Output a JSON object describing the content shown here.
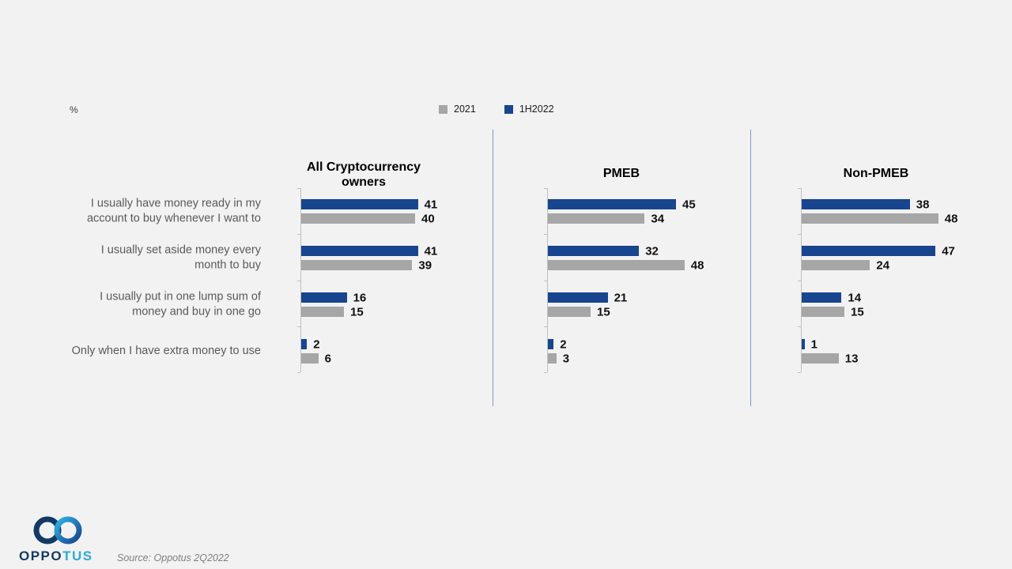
{
  "page": {
    "background": "#f2f2f2",
    "percent_label": "%",
    "source_text": "Source: Oppotus 2Q2022"
  },
  "logo": {
    "text_primary": "OPPO",
    "text_secondary": "TUS"
  },
  "legend": {
    "items": [
      {
        "label": "2021",
        "color": "#a6a6a6"
      },
      {
        "label": "1H2022",
        "color": "#17458f"
      }
    ]
  },
  "chart_data": {
    "type": "bar",
    "orientation": "horizontal",
    "unit": "%",
    "xlim": [
      0,
      50
    ],
    "grid": false,
    "legend_position": "top",
    "categories": [
      "I usually have money ready in my\naccount to buy whenever I want to",
      "I usually set aside money every\nmonth to buy",
      "I usually put in one lump sum of\nmoney and buy in one go",
      "Only when I have extra money to use"
    ],
    "colors": {
      "2021": "#a6a6a6",
      "1H2022": "#17458f"
    },
    "panels": [
      {
        "title": "All Cryptocurrency\nowners",
        "series": [
          {
            "name": "1H2022",
            "values": [
              41,
              41,
              16,
              2
            ]
          },
          {
            "name": "2021",
            "values": [
              40,
              39,
              15,
              6
            ]
          }
        ]
      },
      {
        "title": "PMEB",
        "series": [
          {
            "name": "1H2022",
            "values": [
              45,
              32,
              21,
              2
            ]
          },
          {
            "name": "2021",
            "values": [
              34,
              48,
              15,
              3
            ]
          }
        ]
      },
      {
        "title": "Non-PMEB",
        "series": [
          {
            "name": "1H2022",
            "values": [
              38,
              47,
              14,
              1
            ]
          },
          {
            "name": "2021",
            "values": [
              48,
              24,
              15,
              13
            ]
          }
        ]
      }
    ]
  }
}
